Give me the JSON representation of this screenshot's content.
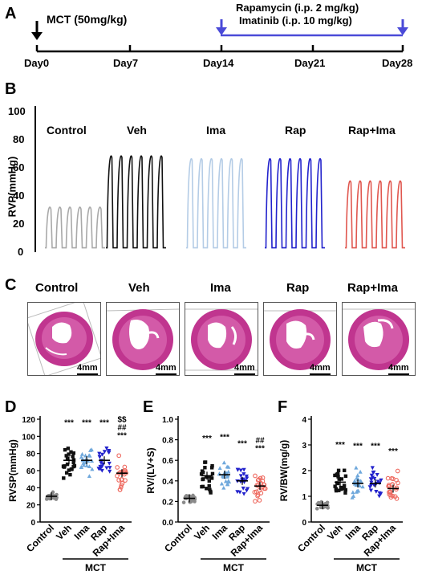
{
  "panels": {
    "a": "A",
    "b": "B",
    "c": "C",
    "d": "D",
    "e": "E",
    "f": "F"
  },
  "timeline": {
    "mct_label": "MCT (50mg/kg)",
    "treatment_line1": "Rapamycin (i.p. 2 mg/kg)",
    "treatment_line2": "Imatinib (i.p. 10 mg/kg)",
    "days": [
      "Day0",
      "Day7",
      "Day14",
      "Day21",
      "Day28"
    ],
    "accent": "#4a4ad8"
  },
  "traces": {
    "ylabel": "RVP(mmHg)",
    "yticks": [
      "100",
      "80",
      "60",
      "40",
      "20",
      "0"
    ],
    "groups": [
      {
        "label": "Control",
        "color": "#a9a9a9",
        "peak": 33
      },
      {
        "label": "Veh",
        "color": "#111111",
        "peak": 70
      },
      {
        "label": "Ima",
        "color": "#b4cce6",
        "peak": 68
      },
      {
        "label": "Rap",
        "color": "#2222cc",
        "peak": 68
      },
      {
        "label": "Rap+Ima",
        "color": "#e0574f",
        "peak": 52
      }
    ]
  },
  "histology": {
    "labels": [
      "Control",
      "Veh",
      "Ima",
      "Rap",
      "Rap+Ima"
    ],
    "scale": "4mm",
    "stain_color": "#c0358f"
  },
  "chart_data": [
    {
      "type": "scatter",
      "panel": "D",
      "ylabel": "RVSP(mmHg)",
      "ylim": [
        0,
        120
      ],
      "yticks": [
        "0",
        "20",
        "40",
        "60",
        "80",
        "100",
        "120"
      ],
      "categories": [
        "Control",
        "Veh",
        "Ima",
        "Rap",
        "Rap+Ima"
      ],
      "group_label": "MCT",
      "means": [
        30,
        72,
        72,
        72,
        57
      ],
      "colors": [
        "#8a8a8a",
        "#111111",
        "#6fa8dc",
        "#2222cc",
        "#ee6a60"
      ],
      "annotations": [
        "",
        "***",
        "***",
        "***",
        "$$\n##\n***"
      ]
    },
    {
      "type": "scatter",
      "panel": "E",
      "ylabel": "RV/(LV+S)",
      "ylim": [
        0.0,
        1.0
      ],
      "yticks": [
        "0.0",
        "0.2",
        "0.4",
        "0.6",
        "0.8",
        "1.0"
      ],
      "categories": [
        "Control",
        "Veh",
        "Ima",
        "Rap",
        "Rap+Ima"
      ],
      "group_label": "MCT",
      "means": [
        0.23,
        0.45,
        0.46,
        0.4,
        0.35
      ],
      "colors": [
        "#8a8a8a",
        "#111111",
        "#6fa8dc",
        "#2222cc",
        "#ee6a60"
      ],
      "annotations": [
        "",
        "***",
        "***",
        "***",
        "##\n***"
      ]
    },
    {
      "type": "scatter",
      "panel": "F",
      "ylabel": "RV/BW(mg/g)",
      "ylim": [
        0,
        4
      ],
      "yticks": [
        "0",
        "1",
        "2",
        "3",
        "4"
      ],
      "categories": [
        "Control",
        "Veh",
        "Ima",
        "Rap",
        "Rap+Ima"
      ],
      "group_label": "MCT",
      "means": [
        0.65,
        1.55,
        1.5,
        1.5,
        1.3
      ],
      "colors": [
        "#8a8a8a",
        "#111111",
        "#6fa8dc",
        "#2222cc",
        "#ee6a60"
      ],
      "annotations": [
        "",
        "***",
        "***",
        "***",
        "***"
      ]
    }
  ]
}
